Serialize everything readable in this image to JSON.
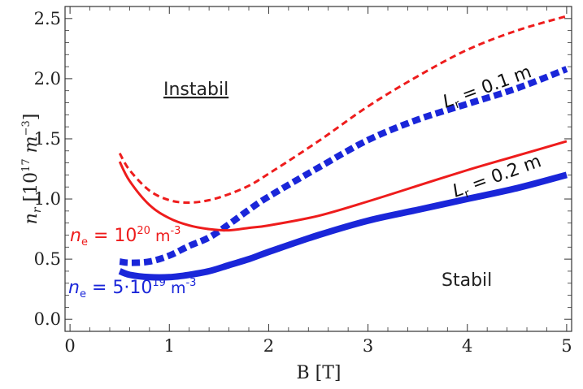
{
  "chart_data": {
    "type": "line",
    "xlabel": "B [T]",
    "ylabel": "n_r [10^17 m^-3]",
    "xlim": [
      -0.05,
      5.05
    ],
    "ylim": [
      -0.1,
      2.6
    ],
    "x_ticks": [
      0,
      1,
      2,
      3,
      4,
      5
    ],
    "y_ticks": [
      0.0,
      0.5,
      1.0,
      1.5,
      2.0,
      2.5
    ],
    "x_tick_labels": [
      "0",
      "1",
      "2",
      "3",
      "4",
      "5"
    ],
    "y_tick_labels": [
      "0.0",
      "0.5",
      "1.0",
      "1.5",
      "2.0",
      "2.5"
    ],
    "grid": false,
    "colors": {
      "red": "#ee1c1c",
      "blue": "#1a26d9"
    },
    "series": [
      {
        "color": "red",
        "dash": "dashed",
        "weight": "thin",
        "x": [
          0.5,
          0.6,
          0.8,
          1.0,
          1.2,
          1.4,
          1.6,
          1.8,
          2.0,
          2.5,
          3.0,
          3.5,
          4.0,
          4.5,
          5.0
        ],
        "values": [
          1.38,
          1.24,
          1.07,
          0.99,
          0.97,
          0.99,
          1.04,
          1.11,
          1.21,
          1.48,
          1.77,
          2.02,
          2.24,
          2.4,
          2.52
        ]
      },
      {
        "color": "blue",
        "dash": "dashed",
        "weight": "thick",
        "x": [
          0.5,
          0.6,
          0.8,
          1.0,
          1.2,
          1.4,
          1.6,
          1.8,
          2.0,
          2.5,
          3.0,
          3.5,
          4.0,
          4.5,
          5.0
        ],
        "values": [
          0.48,
          0.47,
          0.48,
          0.53,
          0.61,
          0.68,
          0.79,
          0.91,
          1.02,
          1.26,
          1.49,
          1.66,
          1.79,
          1.92,
          2.08
        ]
      },
      {
        "color": "red",
        "dash": "solid",
        "weight": "thin",
        "x": [
          0.5,
          0.6,
          0.8,
          1.0,
          1.2,
          1.4,
          1.6,
          1.8,
          2.0,
          2.5,
          3.0,
          3.5,
          4.0,
          4.5,
          5.0
        ],
        "values": [
          1.31,
          1.15,
          0.95,
          0.84,
          0.78,
          0.75,
          0.74,
          0.76,
          0.78,
          0.86,
          0.98,
          1.11,
          1.24,
          1.36,
          1.48
        ]
      },
      {
        "color": "blue",
        "dash": "solid",
        "weight": "thick",
        "x": [
          0.5,
          0.6,
          0.8,
          1.0,
          1.2,
          1.4,
          1.6,
          1.8,
          2.0,
          2.5,
          3.0,
          3.5,
          4.0,
          4.5,
          5.0
        ],
        "values": [
          0.4,
          0.37,
          0.35,
          0.35,
          0.37,
          0.4,
          0.45,
          0.5,
          0.56,
          0.7,
          0.82,
          0.91,
          1.0,
          1.09,
          1.2
        ]
      }
    ],
    "annotations": {
      "instabil": "Instabil",
      "stabil": "Stabil",
      "lr_01": {
        "var": "L",
        "sub": "r",
        "rest": " = 0.1 m"
      },
      "lr_02": {
        "var": "L",
        "sub": "r",
        "rest": " = 0.2 m"
      },
      "ne_red": {
        "var": "n",
        "sub": "e",
        "mid": " = 10",
        "sup": "20",
        "unit": " m",
        "unit_sup": "-3"
      },
      "ne_blue": {
        "var": "n",
        "sub": "e",
        "mid": " = 5·10",
        "sup": "19",
        "unit": " m",
        "unit_sup": "-3"
      }
    },
    "ylabel_parts": {
      "var": "n",
      "sub": "r",
      "open": " [10",
      "sup1": "17",
      "unit": " m",
      "sup2": "−3",
      "close": "]"
    }
  }
}
